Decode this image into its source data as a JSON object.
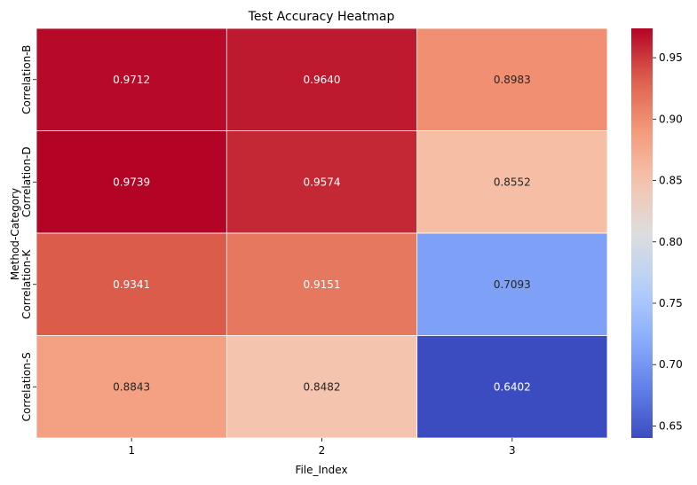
{
  "chart_data": {
    "type": "heatmap",
    "title": "Test Accuracy Heatmap",
    "xlabel": "File_Index",
    "ylabel": "Method-Category",
    "x_categories": [
      "1",
      "2",
      "3"
    ],
    "y_categories": [
      "Correlation-B",
      "Correlation-D",
      "Correlation-K",
      "Correlation-S"
    ],
    "values": [
      [
        0.9712,
        0.964,
        0.8983
      ],
      [
        0.9739,
        0.9574,
        0.8552
      ],
      [
        0.9341,
        0.9151,
        0.7093
      ],
      [
        0.8843,
        0.8482,
        0.6402
      ]
    ],
    "value_labels": [
      [
        "0.9712",
        "0.9640",
        "0.8983"
      ],
      [
        "0.9739",
        "0.9574",
        "0.8552"
      ],
      [
        "0.9341",
        "0.9151",
        "0.7093"
      ],
      [
        "0.8843",
        "0.8482",
        "0.6402"
      ]
    ],
    "colormap": "coolwarm",
    "colorbar": {
      "vmin": 0.6402,
      "vmax": 0.9739,
      "ticks": [
        0.65,
        0.7,
        0.75,
        0.8,
        0.85,
        0.9,
        0.95
      ],
      "tick_labels": [
        "0.65",
        "0.70",
        "0.75",
        "0.80",
        "0.85",
        "0.90",
        "0.95"
      ]
    },
    "grid": false,
    "legend": "colorbar-right"
  }
}
